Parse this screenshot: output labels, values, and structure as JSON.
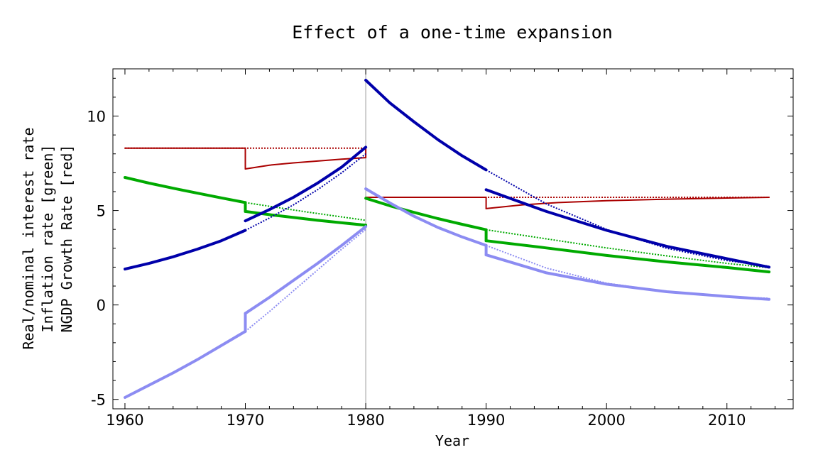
{
  "chart_data": {
    "type": "line",
    "title": "Effect of a one-time expansion",
    "xlabel": "Year",
    "ylabel_lines": [
      "Real/nominal interest rate",
      "Inflation rate [green]",
      "NGDP Growth Rate [red]"
    ],
    "xlim": [
      1959,
      2015.5
    ],
    "ylim": [
      -5.5,
      12.5
    ],
    "x_ticks": [
      1960,
      1970,
      1980,
      1990,
      2000,
      2010
    ],
    "y_ticks": [
      -5,
      0,
      5,
      10
    ],
    "x_tick_labels": [
      "1960",
      "1970",
      "1980",
      "1990",
      "2000",
      "2010"
    ],
    "y_tick_labels": [
      "-5",
      "0",
      "5",
      "10"
    ],
    "vertical_reference_line": 1980,
    "grid": false,
    "colors": {
      "ngdp": "#aa0000",
      "inflation": "#00aa00",
      "nominal": "#0000aa",
      "real": "#8c8cf2",
      "reference": "#999999"
    },
    "series": [
      {
        "key": "ngdp",
        "style": "dotted",
        "width": 2,
        "x": [
          1960,
          1980
        ],
        "y": [
          8.3,
          8.3
        ]
      },
      {
        "key": "ngdp",
        "style": "solid",
        "width": 2,
        "x": [
          1960,
          1970
        ],
        "y": [
          8.3,
          8.3
        ]
      },
      {
        "key": "ngdp",
        "style": "solid",
        "width": 2,
        "x": [
          1970,
          1970
        ],
        "y": [
          8.3,
          7.2
        ]
      },
      {
        "key": "ngdp",
        "style": "solid",
        "width": 2,
        "x": [
          1970,
          1972,
          1974,
          1976,
          1978,
          1980
        ],
        "y": [
          7.2,
          7.4,
          7.52,
          7.62,
          7.72,
          7.8
        ]
      },
      {
        "key": "ngdp",
        "style": "solid",
        "width": 2,
        "x": [
          1980,
          1980
        ],
        "y": [
          7.8,
          8.3
        ]
      },
      {
        "key": "ngdp",
        "style": "dotted",
        "width": 2,
        "x": [
          1980,
          2013.5
        ],
        "y": [
          5.7,
          5.7
        ]
      },
      {
        "key": "ngdp",
        "style": "solid",
        "width": 2,
        "x": [
          1980,
          1990
        ],
        "y": [
          5.7,
          5.7
        ]
      },
      {
        "key": "ngdp",
        "style": "solid",
        "width": 2,
        "x": [
          1990,
          1990
        ],
        "y": [
          5.7,
          5.1
        ]
      },
      {
        "key": "ngdp",
        "style": "solid",
        "width": 2,
        "x": [
          1990,
          1993,
          1996,
          2000,
          2005,
          2010,
          2013.5
        ],
        "y": [
          5.1,
          5.3,
          5.42,
          5.52,
          5.6,
          5.66,
          5.7
        ]
      },
      {
        "key": "inflation",
        "style": "solid",
        "width": 4,
        "x": [
          1960,
          1962,
          1964,
          1966,
          1968,
          1970
        ],
        "y": [
          6.75,
          6.45,
          6.18,
          5.92,
          5.67,
          5.42
        ]
      },
      {
        "key": "inflation",
        "style": "solid",
        "width": 4,
        "x": [
          1970,
          1970
        ],
        "y": [
          5.42,
          4.95
        ]
      },
      {
        "key": "inflation",
        "style": "solid",
        "width": 4,
        "x": [
          1970,
          1972,
          1974,
          1976,
          1978,
          1980
        ],
        "y": [
          4.95,
          4.78,
          4.63,
          4.48,
          4.35,
          4.22
        ]
      },
      {
        "key": "inflation",
        "style": "dotted",
        "width": 2,
        "x": [
          1970,
          1975,
          1980
        ],
        "y": [
          5.42,
          4.93,
          4.48
        ]
      },
      {
        "key": "inflation",
        "style": "solid",
        "width": 4,
        "x": [
          1980,
          1982,
          1984,
          1986,
          1988,
          1990
        ],
        "y": [
          5.65,
          5.25,
          4.9,
          4.57,
          4.27,
          3.98
        ]
      },
      {
        "key": "inflation",
        "style": "solid",
        "width": 4,
        "x": [
          1990,
          1990
        ],
        "y": [
          3.98,
          3.4
        ]
      },
      {
        "key": "inflation",
        "style": "solid",
        "width": 4,
        "x": [
          1990,
          1995,
          2000,
          2005,
          2010,
          2013.5
        ],
        "y": [
          3.4,
          3.02,
          2.62,
          2.28,
          1.98,
          1.75
        ]
      },
      {
        "key": "inflation",
        "style": "dotted",
        "width": 2,
        "x": [
          1990,
          1995,
          2000,
          2005,
          2010,
          2013.5
        ],
        "y": [
          3.98,
          3.5,
          3.02,
          2.6,
          2.2,
          1.97
        ]
      },
      {
        "key": "nominal",
        "style": "solid",
        "width": 4,
        "x": [
          1960,
          1962,
          1964,
          1966,
          1968,
          1970
        ],
        "y": [
          1.9,
          2.2,
          2.55,
          2.95,
          3.4,
          3.95
        ]
      },
      {
        "key": "nominal",
        "style": "dotted",
        "width": 2,
        "x": [
          1970,
          1972,
          1974,
          1976,
          1978,
          1980
        ],
        "y": [
          3.95,
          4.6,
          5.3,
          6.1,
          7.0,
          8.0
        ]
      },
      {
        "key": "nominal",
        "style": "solid",
        "width": 4,
        "x": [
          1970,
          1972,
          1974,
          1976,
          1978,
          1980
        ],
        "y": [
          4.45,
          5.05,
          5.7,
          6.45,
          7.3,
          8.35
        ]
      },
      {
        "key": "nominal",
        "style": "solid",
        "width": 4,
        "x": [
          1980,
          1982,
          1984,
          1986,
          1988,
          1990
        ],
        "y": [
          11.9,
          10.7,
          9.7,
          8.75,
          7.9,
          7.15
        ]
      },
      {
        "key": "nominal",
        "style": "dotted",
        "width": 2,
        "x": [
          1990,
          1995,
          2000,
          2005,
          2010,
          2013.5
        ],
        "y": [
          7.15,
          5.35,
          4.0,
          3.0,
          2.35,
          2.05
        ]
      },
      {
        "key": "nominal",
        "style": "solid",
        "width": 4,
        "x": [
          1990,
          1995,
          2000,
          2005,
          2010,
          2013.5
        ],
        "y": [
          6.1,
          4.95,
          3.95,
          3.1,
          2.45,
          2.0
        ]
      },
      {
        "key": "real",
        "style": "solid",
        "width": 4,
        "x": [
          1960,
          1962,
          1964,
          1966,
          1968,
          1970
        ],
        "y": [
          -4.9,
          -4.25,
          -3.6,
          -2.9,
          -2.15,
          -1.4
        ]
      },
      {
        "key": "real",
        "style": "solid",
        "width": 4,
        "x": [
          1970,
          1970
        ],
        "y": [
          -1.4,
          -0.45
        ]
      },
      {
        "key": "real",
        "style": "solid",
        "width": 4,
        "x": [
          1970,
          1972,
          1974,
          1976,
          1978,
          1980
        ],
        "y": [
          -0.45,
          0.4,
          1.3,
          2.2,
          3.15,
          4.15
        ]
      },
      {
        "key": "real",
        "style": "dotted",
        "width": 2,
        "x": [
          1970,
          1972,
          1974,
          1976,
          1978,
          1980
        ],
        "y": [
          -1.4,
          -0.35,
          0.75,
          1.85,
          2.95,
          4.0
        ]
      },
      {
        "key": "real",
        "style": "solid",
        "width": 4,
        "x": [
          1980,
          1982,
          1984,
          1986,
          1988,
          1990
        ],
        "y": [
          6.15,
          5.4,
          4.7,
          4.1,
          3.6,
          3.15
        ]
      },
      {
        "key": "real",
        "style": "solid",
        "width": 4,
        "x": [
          1990,
          1990
        ],
        "y": [
          3.15,
          2.65
        ]
      },
      {
        "key": "real",
        "style": "solid",
        "width": 4,
        "x": [
          1990,
          1995,
          2000,
          2005,
          2010,
          2013.5
        ],
        "y": [
          2.65,
          1.7,
          1.1,
          0.7,
          0.45,
          0.3
        ]
      },
      {
        "key": "real",
        "style": "dotted",
        "width": 2,
        "x": [
          1990,
          1995,
          2000,
          2005,
          2010,
          2013.5
        ],
        "y": [
          3.15,
          1.95,
          1.15,
          0.7,
          0.45,
          0.35
        ]
      }
    ]
  }
}
